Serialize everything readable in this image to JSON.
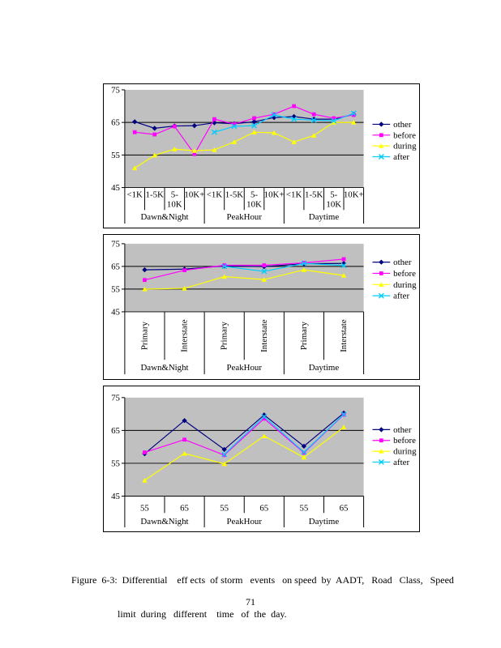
{
  "page": {
    "number": "71"
  },
  "caption": {
    "line1": "Figure  6-3:  Differential    eff ects  of storm   events   on speed  by  AADT,   Road   Class,   Speed",
    "line2": "limit  during   different    time   of  the  day."
  },
  "colors": {
    "plot_bg": "#C0C0C0",
    "axis": "#000000",
    "other": "#000080",
    "before": "#FF00FF",
    "during": "#FFFF00",
    "after": "#00CCFF"
  },
  "chart_data": [
    {
      "type": "line",
      "id": "speed-by-aadt",
      "ylim": [
        45,
        75
      ],
      "y_ticks": [
        45,
        55,
        65,
        75
      ],
      "gridlines": [
        55,
        65
      ],
      "legend_position": "right",
      "groups": [
        "Dawn&Night",
        "PeakHour",
        "Daytime"
      ],
      "categories": [
        "<1K",
        "1-5K",
        "5-\n10K",
        "10K+",
        "<1K",
        "1-5K",
        "5-\n10K",
        "10K+",
        "<1K",
        "1-5K",
        "5-\n10K",
        "10K+"
      ],
      "rotate_categories": false,
      "series": [
        {
          "name": "other",
          "color": "#000080",
          "marker": "diamond",
          "values": [
            65.2,
            63.2,
            63.9,
            64.0,
            64.9,
            64.6,
            65.2,
            66.5,
            66.8,
            66.0,
            66.0,
            67.5
          ]
        },
        {
          "name": "before",
          "color": "#FF00FF",
          "marker": "square",
          "values": [
            62.0,
            61.3,
            63.8,
            55.3,
            66.0,
            64.5,
            66.3,
            67.5,
            70.0,
            67.5,
            66.3,
            67.3
          ]
        },
        {
          "name": "during",
          "color": "#FFFF00",
          "marker": "triangle",
          "values": [
            51.0,
            54.9,
            56.8,
            56.3,
            56.6,
            59.0,
            62.0,
            61.8,
            59.0,
            61.0,
            65.0,
            65.0
          ]
        },
        {
          "name": "after",
          "color": "#00CCFF",
          "marker": "x",
          "values": [
            null,
            null,
            null,
            null,
            62.0,
            63.8,
            64.0,
            67.3,
            66.0,
            65.7,
            65.5,
            67.8
          ]
        }
      ]
    },
    {
      "type": "line",
      "id": "speed-by-road-class",
      "ylim": [
        45,
        75
      ],
      "y_ticks": [
        45,
        55,
        65,
        75
      ],
      "gridlines": [
        55,
        65
      ],
      "legend_position": "right",
      "groups": [
        "Dawn&Night",
        "PeakHour",
        "Daytime"
      ],
      "categories": [
        "Primary",
        "Interstate",
        "Primary",
        "Interstate",
        "Primary",
        "Interstate"
      ],
      "rotate_categories": true,
      "series": [
        {
          "name": "other",
          "color": "#000080",
          "marker": "diamond",
          "values": [
            63.5,
            63.8,
            65.2,
            64.9,
            66.2,
            66.3
          ]
        },
        {
          "name": "before",
          "color": "#FF00FF",
          "marker": "square",
          "values": [
            59.0,
            63.3,
            65.5,
            65.5,
            66.6,
            68.2
          ]
        },
        {
          "name": "during",
          "color": "#FFFF00",
          "marker": "triangle",
          "values": [
            55.0,
            55.3,
            60.5,
            59.2,
            63.5,
            61.0
          ]
        },
        {
          "name": "after",
          "color": "#00CCFF",
          "marker": "x",
          "values": [
            null,
            null,
            65.0,
            62.8,
            66.3,
            65.4
          ]
        }
      ]
    },
    {
      "type": "line",
      "id": "speed-by-speed-limit",
      "ylim": [
        45,
        75
      ],
      "y_ticks": [
        45,
        55,
        65,
        75
      ],
      "gridlines": [
        55,
        65
      ],
      "legend_position": "right",
      "groups": [
        "Dawn&Night",
        "PeakHour",
        "Daytime"
      ],
      "categories": [
        "55",
        "65",
        "55",
        "65",
        "55",
        "65"
      ],
      "rotate_categories": false,
      "series": [
        {
          "name": "other",
          "color": "#000080",
          "marker": "diamond",
          "values": [
            57.9,
            68.0,
            59.2,
            69.7,
            60.2,
            70.3
          ]
        },
        {
          "name": "before",
          "color": "#FF00FF",
          "marker": "square",
          "values": [
            58.3,
            62.2,
            57.5,
            68.6,
            58.2,
            69.8
          ]
        },
        {
          "name": "during",
          "color": "#FFFF00",
          "marker": "triangle",
          "values": [
            49.8,
            58.0,
            54.8,
            63.3,
            56.8,
            66.0
          ]
        },
        {
          "name": "after",
          "color": "#00CCFF",
          "marker": "x",
          "values": [
            null,
            null,
            57.7,
            69.2,
            58.4,
            69.9
          ]
        }
      ]
    }
  ]
}
